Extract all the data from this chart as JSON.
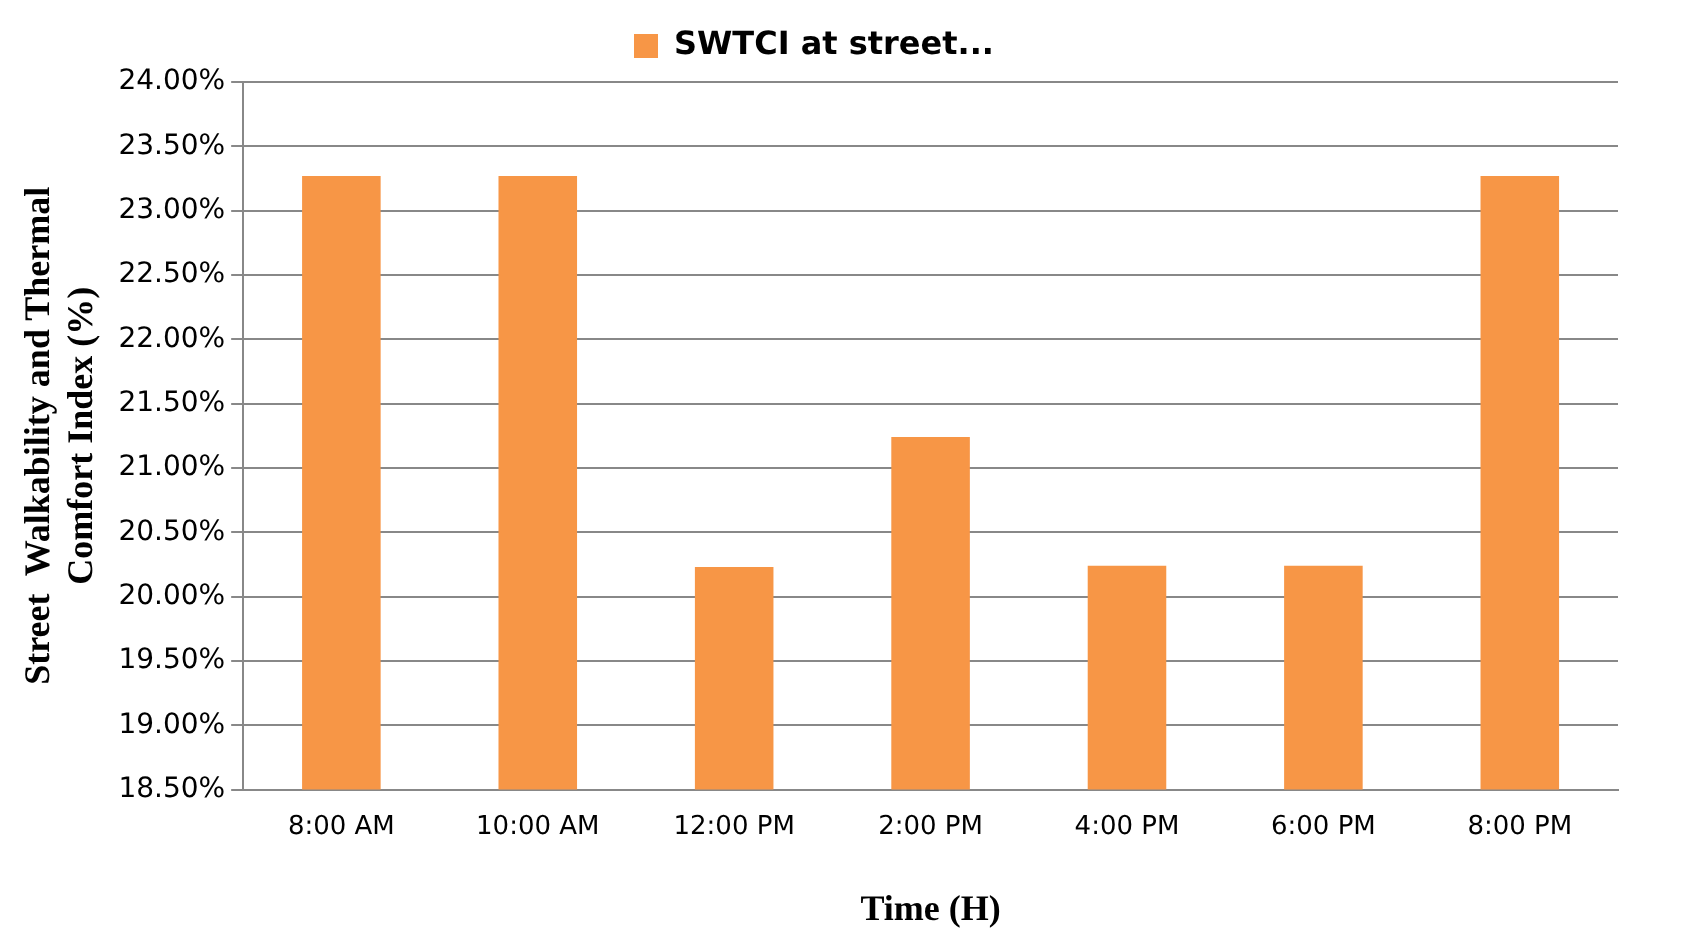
{
  "chart_data": {
    "type": "bar",
    "xlabel": "Time (H)",
    "ylabel": "Street  Walkability and Thermal\nComfort Index (%)",
    "categories": [
      "8:00 AM",
      "10:00 AM",
      "12:00 PM",
      "2:00 PM",
      "4:00 PM",
      "6:00 PM",
      "8:00 PM"
    ],
    "series": [
      {
        "name": "SWTCI at street...",
        "color": "#f79646",
        "values": [
          23.27,
          23.27,
          20.23,
          21.24,
          20.24,
          20.24,
          23.27
        ]
      }
    ],
    "ylim": [
      18.5,
      24
    ],
    "yticks": [
      {
        "value": 18.5,
        "label": "18.50%"
      },
      {
        "value": 19,
        "label": "19.00%"
      },
      {
        "value": 19.5,
        "label": "19.50%"
      },
      {
        "value": 20,
        "label": "20.00%"
      },
      {
        "value": 20.5,
        "label": "20.50%"
      },
      {
        "value": 21,
        "label": "21.00%"
      },
      {
        "value": 21.5,
        "label": "21.50%"
      },
      {
        "value": 22,
        "label": "22.00%"
      },
      {
        "value": 22.5,
        "label": "22.50%"
      },
      {
        "value": 23,
        "label": "23.00%"
      },
      {
        "value": 23.5,
        "label": "23.50%"
      },
      {
        "value": 24,
        "label": "24.00%"
      }
    ],
    "grid": "y",
    "legend": "top"
  }
}
